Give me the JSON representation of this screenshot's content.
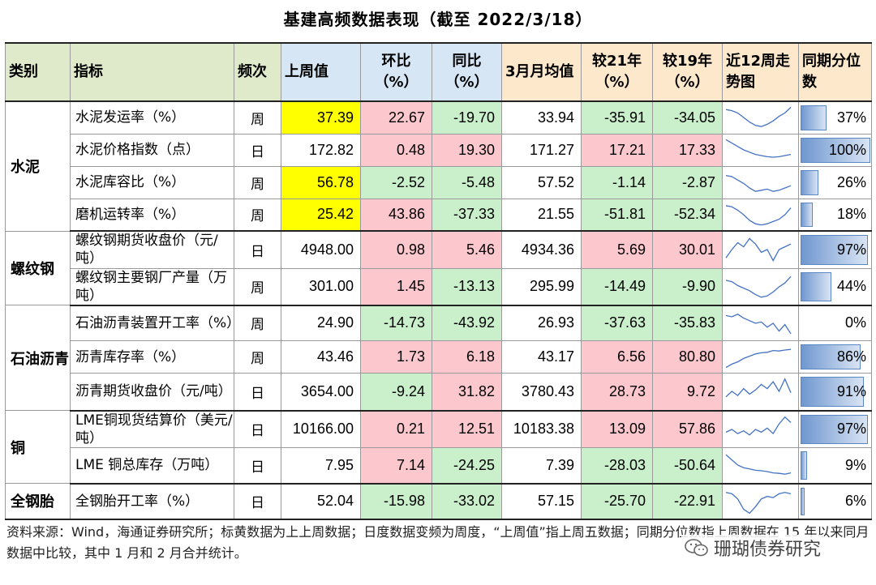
{
  "title": "基建高频数据表现（截至 2022/3/18）",
  "headers": {
    "category": "类别",
    "indicator": "指标",
    "frequency": "频次",
    "last_week": "上周值",
    "wow": "环比（%）",
    "yoy": "同比（%）",
    "month_avg": "3月月均值",
    "vs21": "较21年（%）",
    "vs19": "较19年（%）",
    "trend": "近12周走势图",
    "percentile": "同期分位数"
  },
  "groups": [
    {
      "name": "水泥",
      "rows": [
        {
          "indicator": "水泥发运率（%）",
          "freq": "周",
          "last": "37.39",
          "wow": "22.67",
          "yoy": "-19.70",
          "avg": "33.94",
          "v21": "-35.91",
          "v19": "-34.05",
          "pct": "37%",
          "pct_value": 0.37,
          "hl": true,
          "spark": [
            0.85,
            0.8,
            0.7,
            0.5,
            0.3,
            0.15,
            0.1,
            0.2,
            0.35,
            0.55,
            0.7,
            0.95
          ]
        },
        {
          "indicator": "水泥价格指数（点）",
          "freq": "日",
          "last": "172.82",
          "wow": "0.48",
          "yoy": "19.30",
          "avg": "171.27",
          "v21": "17.21",
          "v19": "17.33",
          "pct": "100%",
          "pct_value": 1.0,
          "hl": false,
          "spark": [
            0.95,
            0.8,
            0.65,
            0.5,
            0.4,
            0.3,
            0.25,
            0.2,
            0.18,
            0.2,
            0.25,
            0.3
          ]
        },
        {
          "indicator": "水泥库容比（%）",
          "freq": "周",
          "last": "56.78",
          "wow": "-2.52",
          "yoy": "-5.48",
          "avg": "57.52",
          "v21": "-1.14",
          "v19": "-2.87",
          "pct": "26%",
          "pct_value": 0.26,
          "hl": true,
          "spark": [
            0.8,
            0.75,
            0.6,
            0.45,
            0.25,
            0.1,
            0.15,
            0.2,
            0.1,
            0.15,
            0.25,
            0.35
          ]
        },
        {
          "indicator": "磨机运转率（%）",
          "freq": "周",
          "last": "25.42",
          "wow": "43.86",
          "yoy": "-37.33",
          "avg": "21.55",
          "v21": "-51.81",
          "v19": "-52.34",
          "pct": "18%",
          "pct_value": 0.18,
          "hl": true,
          "spark": [
            0.9,
            0.85,
            0.7,
            0.5,
            0.25,
            0.1,
            0.05,
            0.1,
            0.2,
            0.3,
            0.5,
            0.8
          ]
        }
      ]
    },
    {
      "name": "螺纹钢",
      "rows": [
        {
          "indicator": "螺纹钢期货收盘价（元/吨）",
          "freq": "日",
          "last": "4948.00",
          "wow": "0.98",
          "yoy": "5.46",
          "avg": "4934.36",
          "v21": "5.69",
          "v19": "30.01",
          "pct": "97%",
          "pct_value": 0.97,
          "hl": false,
          "spark": [
            0.2,
            0.5,
            0.75,
            0.6,
            0.9,
            0.7,
            0.4,
            0.5,
            0.1,
            0.5,
            0.6,
            0.7
          ]
        },
        {
          "indicator": "螺纹钢主要钢厂产量（万吨）",
          "freq": "周",
          "last": "301.00",
          "wow": "1.45",
          "yoy": "-13.13",
          "avg": "295.99",
          "v21": "-14.49",
          "v19": "-9.90",
          "pct": "44%",
          "pct_value": 0.44,
          "hl": false,
          "spark": [
            0.75,
            0.7,
            0.55,
            0.45,
            0.35,
            0.2,
            0.1,
            0.15,
            0.3,
            0.5,
            0.65,
            0.9
          ]
        }
      ]
    },
    {
      "name": "石油沥青",
      "rows": [
        {
          "indicator": "石油沥青装置开工率（%）",
          "freq": "周",
          "last": "24.90",
          "wow": "-14.73",
          "yoy": "-43.92",
          "avg": "26.93",
          "v21": "-37.63",
          "v19": "-35.83",
          "pct": "0%",
          "pct_value": 0.0,
          "hl": false,
          "spark": [
            0.8,
            0.75,
            0.85,
            0.7,
            0.6,
            0.5,
            0.55,
            0.35,
            0.5,
            0.2,
            0.45,
            0.1
          ]
        },
        {
          "indicator": "沥青库存率（%）",
          "freq": "周",
          "last": "43.46",
          "wow": "1.73",
          "yoy": "6.18",
          "avg": "43.17",
          "v21": "6.56",
          "v19": "80.80",
          "pct": "86%",
          "pct_value": 0.86,
          "hl": false,
          "spark": [
            0.05,
            0.2,
            0.3,
            0.45,
            0.55,
            0.65,
            0.7,
            0.72,
            0.8,
            0.78,
            0.82,
            0.85
          ]
        },
        {
          "indicator": "沥青期货收盘价（元/吨）",
          "freq": "日",
          "last": "3654.00",
          "wow": "-9.24",
          "yoy": "31.82",
          "avg": "3780.43",
          "v21": "28.73",
          "v19": "9.72",
          "pct": "91%",
          "pct_value": 0.91,
          "hl": false,
          "spark": [
            0.3,
            0.5,
            0.35,
            0.6,
            0.4,
            0.55,
            0.75,
            0.6,
            0.85,
            0.5,
            0.95,
            0.45
          ]
        }
      ]
    },
    {
      "name": "铜",
      "rows": [
        {
          "indicator": "LME铜现货结算价（美元/吨）",
          "freq": "日",
          "last": "10166.00",
          "wow": "0.21",
          "yoy": "12.51",
          "avg": "10183.38",
          "v21": "13.09",
          "v19": "57.86",
          "pct": "97%",
          "pct_value": 0.97,
          "hl": false,
          "spark": [
            0.4,
            0.5,
            0.35,
            0.45,
            0.3,
            0.5,
            0.4,
            0.55,
            0.35,
            0.7,
            0.95,
            0.75
          ]
        },
        {
          "indicator": "LME 铜总库存（万吨）",
          "freq": "日",
          "last": "7.95",
          "wow": "7.14",
          "yoy": "-24.25",
          "avg": "7.39",
          "v21": "-28.03",
          "v19": "-50.64",
          "pct": "9%",
          "pct_value": 0.09,
          "hl": false,
          "spark": [
            0.9,
            0.7,
            0.5,
            0.4,
            0.35,
            0.3,
            0.28,
            0.25,
            0.2,
            0.18,
            0.15,
            0.2
          ]
        }
      ]
    },
    {
      "name": "全钢胎",
      "rows": [
        {
          "indicator": "全钢胎开工率（%）",
          "freq": "日",
          "last": "52.04",
          "wow": "-15.98",
          "yoy": "-33.02",
          "avg": "57.15",
          "v21": "-25.70",
          "v19": "-22.91",
          "pct": "6%",
          "pct_value": 0.06,
          "hl": false,
          "spark": [
            0.85,
            0.8,
            0.6,
            0.2,
            0.05,
            0.3,
            0.6,
            0.7,
            0.65,
            0.8,
            0.85,
            0.8
          ]
        }
      ]
    }
  ],
  "footer": "资料来源：Wind，海通证券研究所；标黄数据为上上周数据；日度数据变频为周度，“上周值”指上周五数据；同期分位数指上周数据在 15 年以来同月数据中比较，其中 1 月和 2 月合并统计。",
  "watermark": "珊瑚债券研究",
  "colors": {
    "positive": "#fcc7cd",
    "negative": "#c9efcb",
    "highlight": "#ffff00",
    "spark": "#4472c4"
  }
}
